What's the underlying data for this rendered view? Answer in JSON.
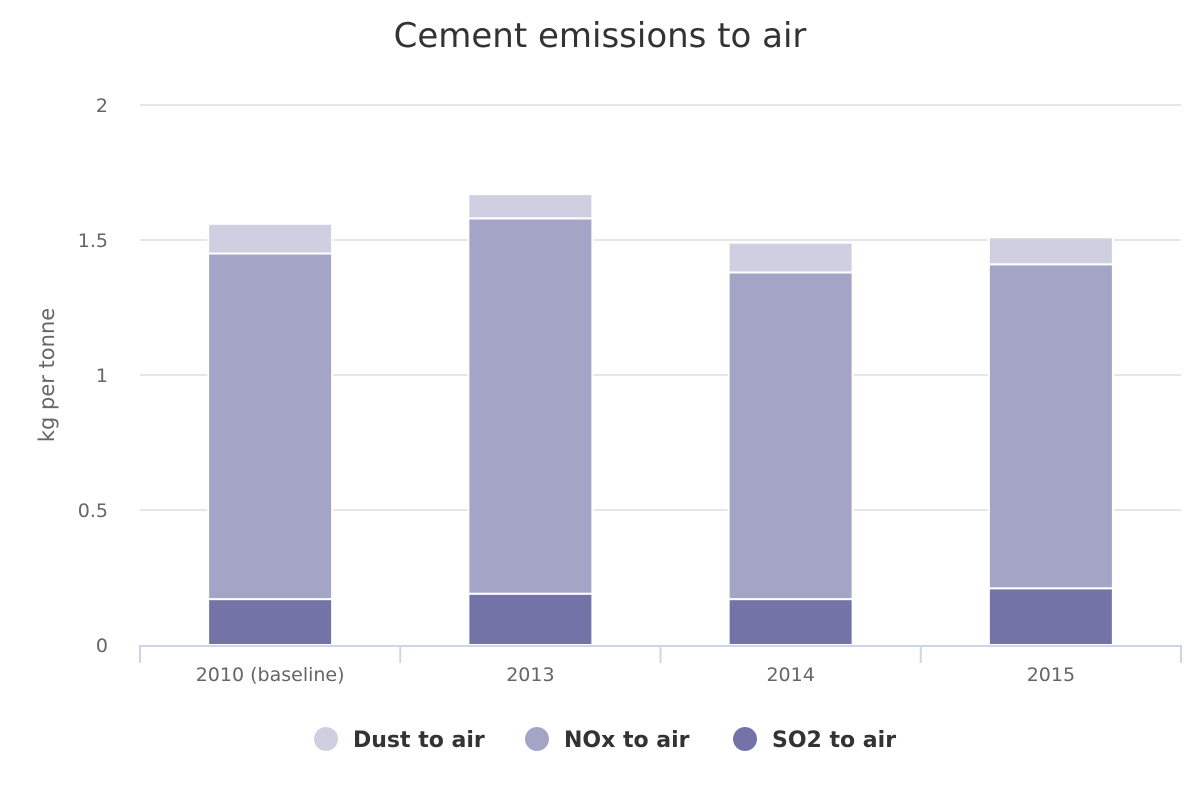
{
  "chart_data": {
    "type": "bar",
    "stacked": true,
    "title": "Cement emissions to air",
    "xlabel": "",
    "ylabel": "kg per tonne",
    "ylim": [
      0,
      2
    ],
    "yticks": [
      0,
      0.5,
      1,
      1.5,
      2
    ],
    "ytick_labels": [
      "0",
      "0.5",
      "1",
      "1.5",
      "2"
    ],
    "grid": true,
    "categories": [
      "2010 (baseline)",
      "2013",
      "2014",
      "2015"
    ],
    "series": [
      {
        "name": "SO2 to air",
        "color": "#7473a8",
        "values": [
          0.17,
          0.19,
          0.17,
          0.21
        ]
      },
      {
        "name": "NOx to air",
        "color": "#a4a4c6",
        "values": [
          1.28,
          1.39,
          1.21,
          1.2
        ]
      },
      {
        "name": "Dust to air",
        "color": "#cfcfe1",
        "values": [
          0.11,
          0.09,
          0.11,
          0.1
        ]
      }
    ],
    "legend": {
      "placement": "bottom-center",
      "order": [
        "Dust to air",
        "NOx to air",
        "SO2 to air"
      ]
    }
  }
}
